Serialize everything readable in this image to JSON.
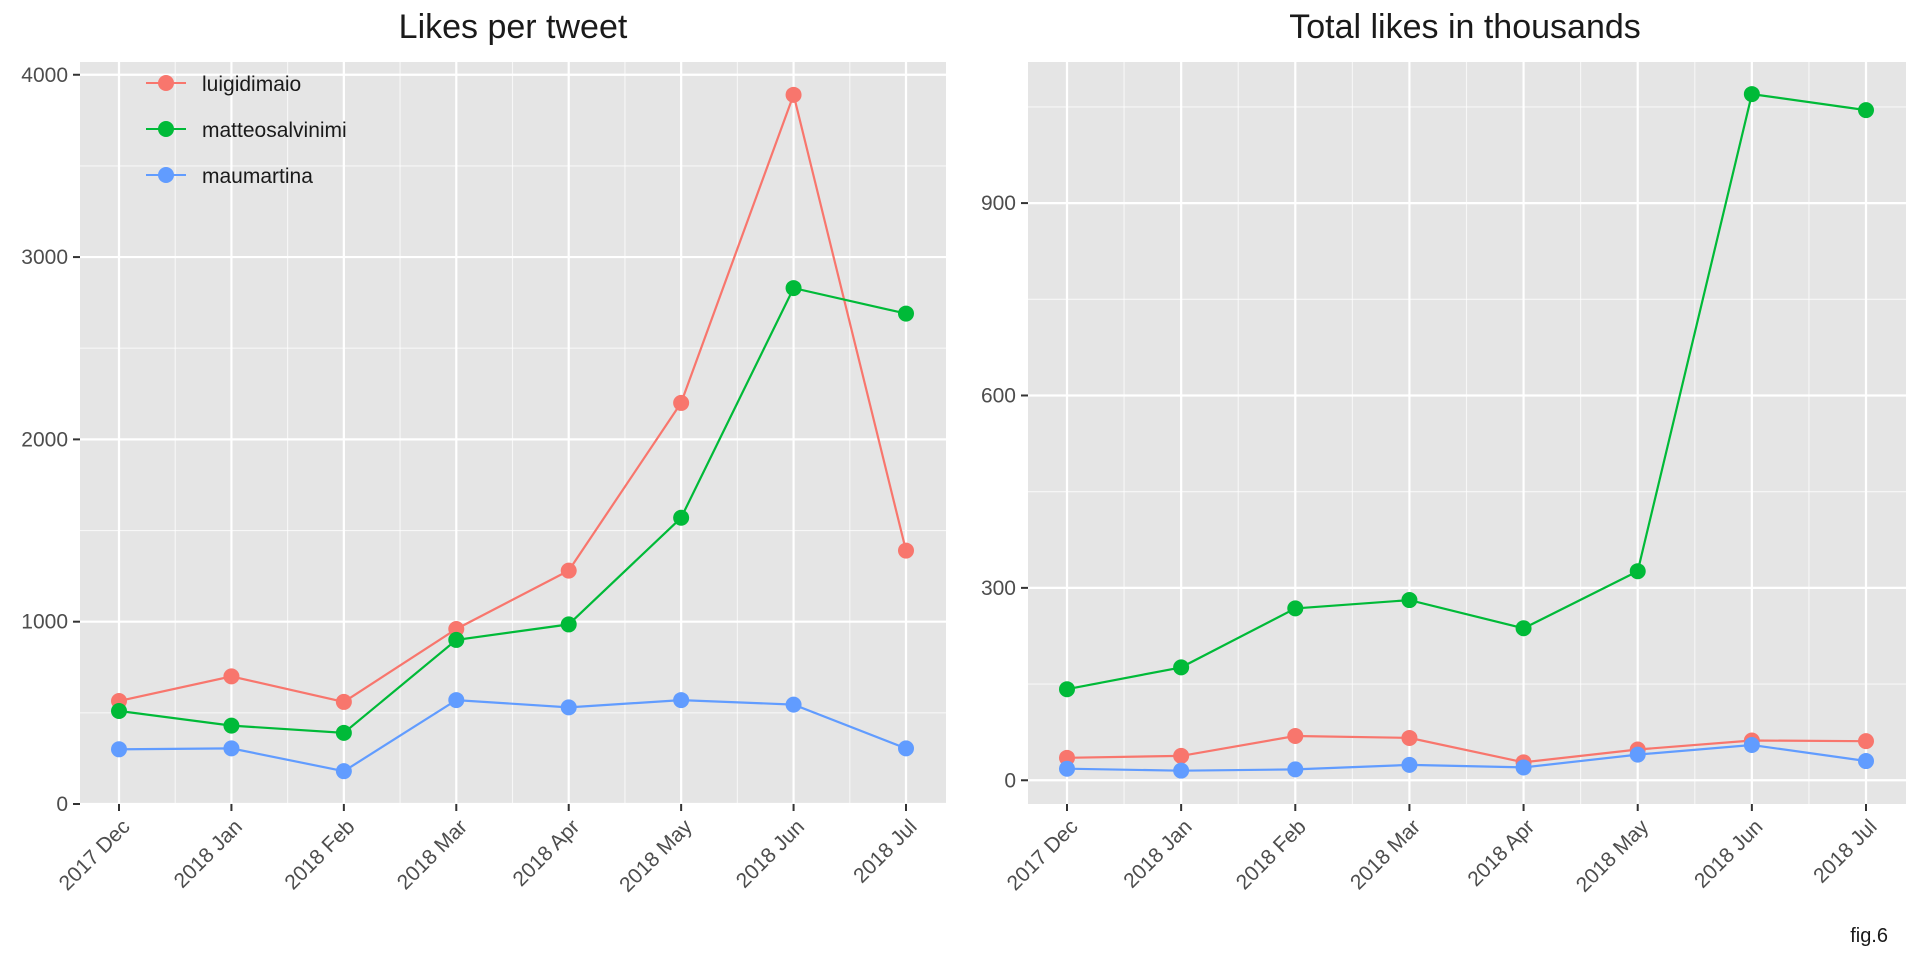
{
  "caption": "fig.6",
  "legend": {
    "entries": [
      "luigidimaio",
      "matteosalvinimi",
      "maumartina"
    ],
    "placement": "top-left"
  },
  "colors": {
    "luigidimaio": "#F8766D",
    "matteosalvinimi": "#00BA38",
    "maumartina": "#619CFF",
    "panel_background": "#E5E5E5",
    "grid": "#FFFFFF"
  },
  "chart_data": [
    {
      "type": "line",
      "title": "Likes per tweet",
      "xlabel": "",
      "ylabel": "",
      "x": [
        "2017 Dec",
        "2018 Jan",
        "2018 Feb",
        "2018 Mar",
        "2018 Apr",
        "2018 May",
        "2018 Jun",
        "2018 Jul"
      ],
      "ylim": [
        0,
        4070
      ],
      "yticks": [
        0,
        1000,
        2000,
        3000,
        4000
      ],
      "grid": true,
      "legend": "top-left",
      "series": [
        {
          "name": "luigidimaio",
          "values": [
            565,
            700,
            560,
            960,
            1280,
            2200,
            3890,
            1390
          ]
        },
        {
          "name": "matteosalvinimi",
          "values": [
            510,
            430,
            390,
            900,
            985,
            1570,
            2830,
            2690
          ]
        },
        {
          "name": "maumartina",
          "values": [
            300,
            305,
            180,
            570,
            530,
            570,
            545,
            305
          ]
        }
      ]
    },
    {
      "type": "line",
      "title": "Total likes in thousands",
      "xlabel": "",
      "ylabel": "",
      "x": [
        "2017 Dec",
        "2018 Jan",
        "2018 Feb",
        "2018 Mar",
        "2018 Apr",
        "2018 May",
        "2018 Jun",
        "2018 Jul"
      ],
      "ylim": [
        -37,
        1120
      ],
      "yticks": [
        0,
        300,
        600,
        900
      ],
      "grid": true,
      "series": [
        {
          "name": "luigidimaio",
          "values": [
            35,
            38,
            69,
            66,
            28,
            48,
            62,
            61
          ]
        },
        {
          "name": "matteosalvinimi",
          "values": [
            142,
            176,
            268,
            281,
            237,
            326,
            1070,
            1045
          ]
        },
        {
          "name": "maumartina",
          "values": [
            18,
            15,
            17,
            24,
            20,
            40,
            55,
            30
          ]
        }
      ]
    }
  ]
}
